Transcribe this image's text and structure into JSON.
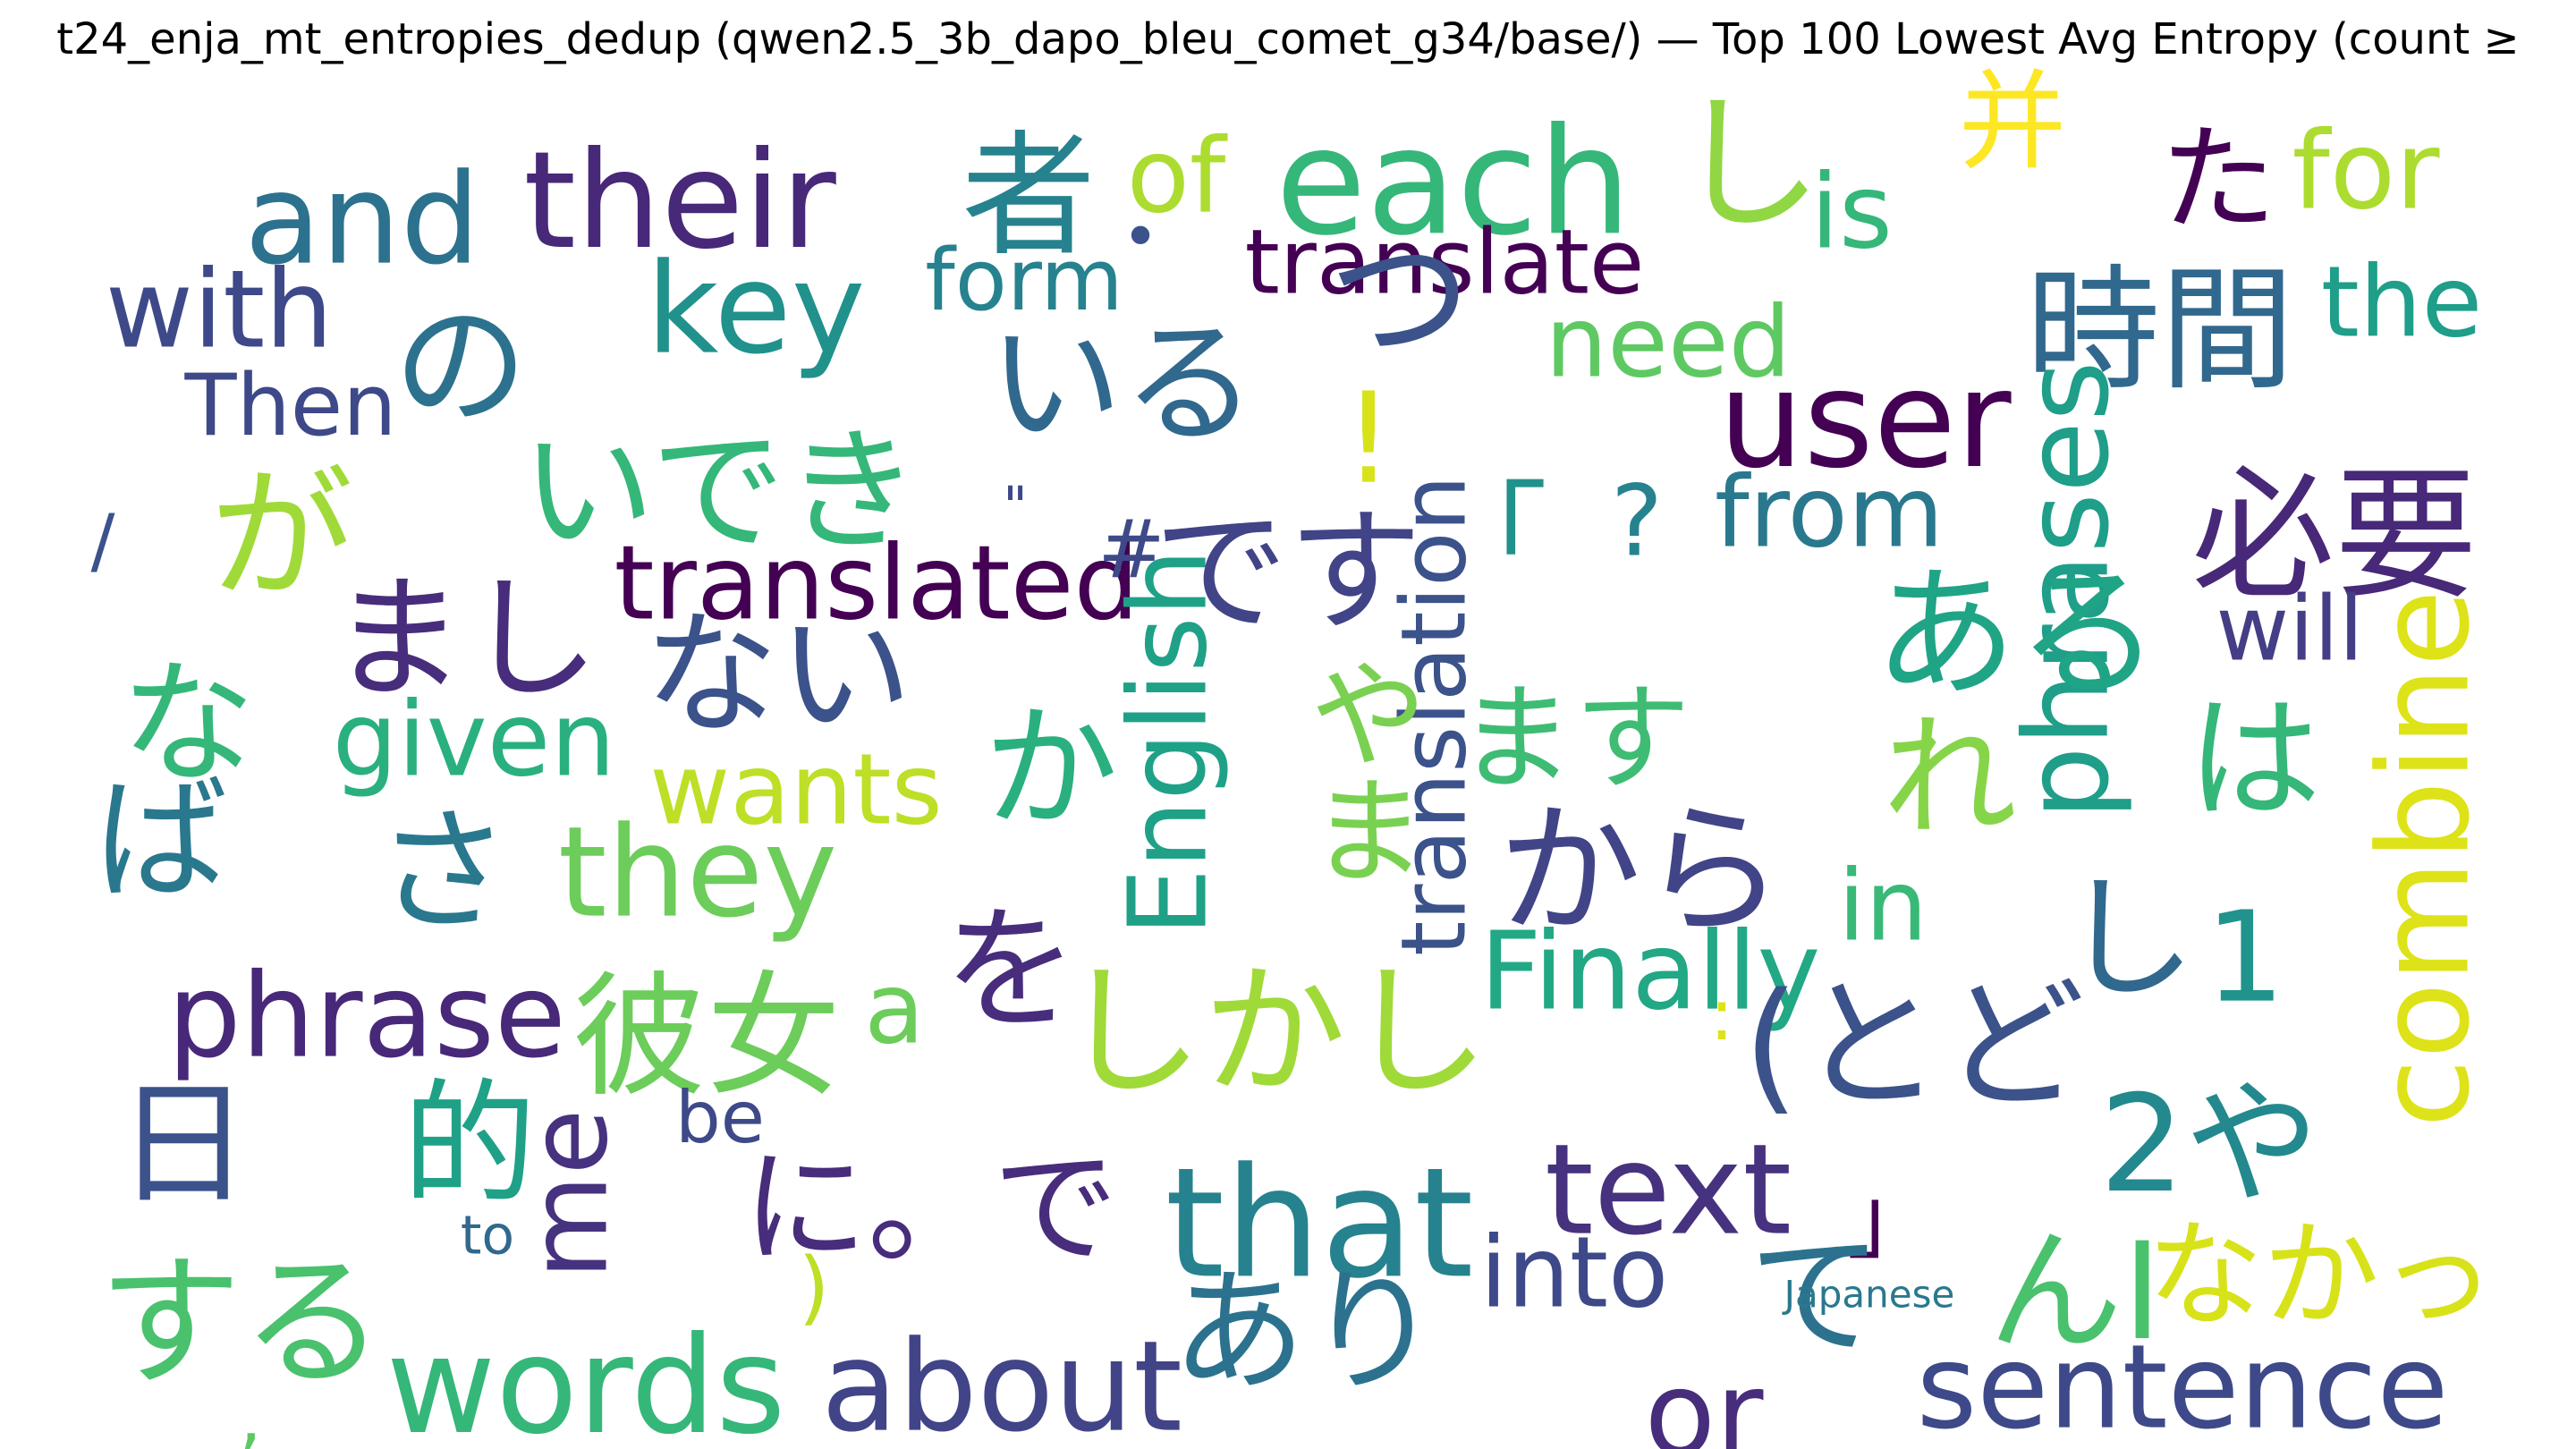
{
  "figure": {
    "title": "t24_enja_mt_entropies_dedup (qwen2.5_3b_dapo_bleu_comet_g34/base/) — Top 100 Lowest Avg Entropy (count ≥",
    "words": [
      {
        "text": "their",
        "color": "#482878"
      },
      {
        "text": "者",
        "color": "#26828e"
      },
      {
        "text": "each",
        "color": "#35b779"
      },
      {
        "text": "し",
        "color": "#90d743"
      },
      {
        "text": "并",
        "color": "#fde725"
      },
      {
        "text": "た",
        "color": "#440154"
      },
      {
        "text": "for",
        "color": "#addc30"
      },
      {
        "text": "and",
        "color": "#2c728e"
      },
      {
        "text": "of",
        "color": "#addc30"
      },
      {
        "text": "is",
        "color": "#35b779"
      },
      {
        "text": "key",
        "color": "#21918c"
      },
      {
        "text": "translate",
        "color": "#440154"
      },
      {
        "text": "form",
        "color": "#26828e"
      },
      {
        "text": "•",
        "color": "#3b528b"
      },
      {
        "text": "the",
        "color": "#1f9e89"
      },
      {
        "text": "with",
        "color": "#3e4989"
      },
      {
        "text": "つ",
        "color": "#3b528b"
      },
      {
        "text": "need",
        "color": "#5ec962"
      },
      {
        "text": "時間",
        "color": "#31688e"
      },
      {
        "text": "の",
        "color": "#2c728e"
      },
      {
        "text": "いる",
        "color": "#31688e"
      },
      {
        "text": "Then",
        "color": "#3e4989"
      },
      {
        "text": "user",
        "color": "#440154"
      },
      {
        "text": "いでき",
        "color": "#35b779"
      },
      {
        "text": "!",
        "color": "#d8e219"
      },
      {
        "text": "が",
        "color": "#a0da39"
      },
      {
        "text": "/",
        "color": "#3b528b"
      },
      {
        "text": "\"",
        "color": "#3e4989"
      },
      {
        "text": "「",
        "color": "#21918c"
      },
      {
        "text": "?",
        "color": "#26828e"
      },
      {
        "text": "from",
        "color": "#2a788e"
      },
      {
        "text": "必要",
        "color": "#482878"
      },
      {
        "text": "phrases",
        "color": "#1f9e89"
      },
      {
        "text": "translated",
        "color": "#440154"
      },
      {
        "text": "#",
        "color": "#3e4989"
      },
      {
        "text": "です",
        "color": "#414487"
      },
      {
        "text": "まし",
        "color": "#472d7b"
      },
      {
        "text": "ある",
        "color": "#20a486"
      },
      {
        "text": "will",
        "color": "#433e85"
      },
      {
        "text": "combine",
        "color": "#dde318"
      },
      {
        "text": "translation",
        "color": "#3b528b"
      },
      {
        "text": "ない",
        "color": "#3b528b"
      },
      {
        "text": "な",
        "color": "#35b779"
      },
      {
        "text": "English",
        "color": "#1fa187"
      },
      {
        "text": "given",
        "color": "#2ab07f"
      },
      {
        "text": "か",
        "color": "#2ab07f"
      },
      {
        "text": "や",
        "color": "#7ad151"
      },
      {
        "text": "ます",
        "color": "#3fbc73"
      },
      {
        "text": "れ",
        "color": "#86d549"
      },
      {
        "text": "は",
        "color": "#35b779"
      },
      {
        "text": "wants",
        "color": "#bddf26"
      },
      {
        "text": "ば",
        "color": "#2a788e"
      },
      {
        "text": "さ",
        "color": "#2a788e"
      },
      {
        "text": "they",
        "color": "#6ccd5a"
      },
      {
        "text": "ま",
        "color": "#7ad151"
      },
      {
        "text": "から",
        "color": "#414487"
      },
      {
        "text": "in",
        "color": "#38b977"
      },
      {
        "text": "し",
        "color": "#31688e"
      },
      {
        "text": "1",
        "color": "#20938c"
      },
      {
        "text": "を",
        "color": "#472d7b"
      },
      {
        "text": "Finally",
        "color": "#22a884"
      },
      {
        "text": "phrase",
        "color": "#482878"
      },
      {
        "text": "彼女",
        "color": "#6ccd5a"
      },
      {
        "text": "a",
        "color": "#6ccd5a"
      },
      {
        "text": "しかし",
        "color": "#a0da39"
      },
      {
        "text": "(とど",
        "color": "#3b528b"
      },
      {
        "text": ":",
        "color": "#dde318"
      },
      {
        "text": "日",
        "color": "#3b528b"
      },
      {
        "text": "的",
        "color": "#1fa187"
      },
      {
        "text": "me",
        "color": "#46327e"
      },
      {
        "text": "be",
        "color": "#3e4989"
      },
      {
        "text": "に。で",
        "color": "#472d7b"
      },
      {
        "text": "2や",
        "color": "#23898e"
      },
      {
        "text": "that",
        "color": "#26828e"
      },
      {
        "text": "text",
        "color": "#46327e"
      },
      {
        "text": "」",
        "color": "#440154"
      },
      {
        "text": "to",
        "color": "#31688e"
      },
      {
        "text": "into",
        "color": "#3e4989"
      },
      {
        "text": "んI",
        "color": "#4ac16d"
      },
      {
        "text": "なかっ",
        "color": "#d8e219"
      },
      {
        "text": "て",
        "color": "#2c728e"
      },
      {
        "text": "する",
        "color": "#4ac16d"
      },
      {
        "text": ")",
        "color": "#bddf26"
      },
      {
        "text": "Japanese",
        "color": "#2a788e"
      },
      {
        "text": "あり",
        "color": "#2c728e"
      },
      {
        "text": "words",
        "color": "#35b779"
      },
      {
        "text": "about",
        "color": "#414487"
      },
      {
        "text": "or",
        "color": "#472d7b"
      },
      {
        "text": "sentence",
        "color": "#3e4989"
      },
      {
        "text": ",",
        "color": "#5ec962"
      }
    ]
  }
}
